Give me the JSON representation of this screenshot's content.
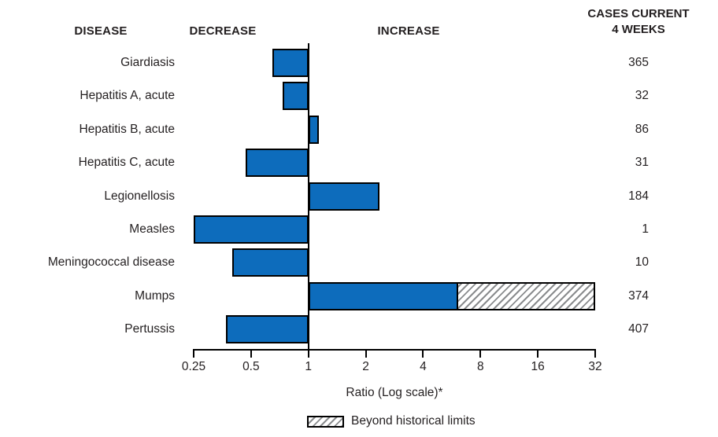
{
  "header": {
    "disease": "DISEASE",
    "decrease": "DECREASE",
    "increase": "INCREASE",
    "cases_line1": "CASES CURRENT",
    "cases_line2": "4 WEEKS"
  },
  "chart_data": {
    "type": "bar",
    "orientation": "horizontal",
    "scale": "log2",
    "title": "",
    "xlabel": "Ratio (Log scale)*",
    "axis": {
      "min": 0.25,
      "max": 32,
      "baseline": 1,
      "ticks": [
        "0.25",
        "0.5",
        "1",
        "2",
        "4",
        "8",
        "16",
        "32"
      ]
    },
    "legend": {
      "hatch_label": "Beyond historical limits",
      "position": "bottom"
    },
    "grid": false,
    "rows": [
      {
        "disease": "Giardiasis",
        "ratio": 0.65,
        "cases": "365"
      },
      {
        "disease": "Hepatitis A, acute",
        "ratio": 0.73,
        "cases": "32"
      },
      {
        "disease": "Hepatitis B, acute",
        "ratio": 1.14,
        "cases": "86"
      },
      {
        "disease": "Hepatitis C, acute",
        "ratio": 0.47,
        "cases": "31"
      },
      {
        "disease": "Legionellosis",
        "ratio": 2.37,
        "cases": "184"
      },
      {
        "disease": "Measles",
        "ratio": 0.25,
        "cases": "1"
      },
      {
        "disease": "Meningococcal disease",
        "ratio": 0.4,
        "cases": "10"
      },
      {
        "disease": "Mumps",
        "ratio": 32,
        "beyond_from": 6.1,
        "cases": "374"
      },
      {
        "disease": "Pertussis",
        "ratio": 0.37,
        "cases": "407"
      }
    ],
    "colors": {
      "bar_fill": "#0d6cbc",
      "bar_border": "#000000",
      "hatch_line": "#8a8c8e",
      "text": "#231f20"
    }
  }
}
